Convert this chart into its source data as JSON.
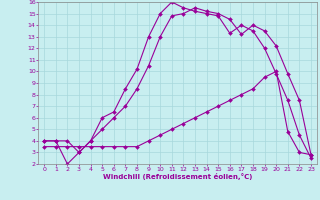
{
  "xlabel": "Windchill (Refroidissement éolien,°C)",
  "bg_color": "#c8eef0",
  "grid_color": "#a8d8dc",
  "line_color": "#990099",
  "xlim": [
    -0.5,
    23.5
  ],
  "ylim": [
    2,
    16
  ],
  "xticks": [
    0,
    1,
    2,
    3,
    4,
    5,
    6,
    7,
    8,
    9,
    10,
    11,
    12,
    13,
    14,
    15,
    16,
    17,
    18,
    19,
    20,
    21,
    22,
    23
  ],
  "yticks": [
    2,
    3,
    4,
    5,
    6,
    7,
    8,
    9,
    10,
    11,
    12,
    13,
    14,
    15,
    16
  ],
  "curve1_x": [
    0,
    1,
    2,
    3,
    4,
    5,
    6,
    7,
    8,
    9,
    10,
    11,
    12,
    13,
    14,
    15,
    16,
    17,
    18,
    19,
    20,
    21,
    22,
    23
  ],
  "curve1_y": [
    4,
    4,
    4,
    3,
    4,
    6,
    6.5,
    8.5,
    10.2,
    13,
    15,
    16,
    15.5,
    15.2,
    15.0,
    14.8,
    13.3,
    14.0,
    13.5,
    12.0,
    9.8,
    7.5,
    4.5,
    2.5
  ],
  "curve2_x": [
    0,
    1,
    2,
    3,
    4,
    5,
    6,
    7,
    8,
    9,
    10,
    11,
    12,
    13,
    14,
    15,
    16,
    17,
    18,
    19,
    20,
    21,
    22,
    23
  ],
  "curve2_y": [
    4,
    4,
    2.0,
    3.0,
    4.0,
    5.0,
    6.0,
    7.0,
    8.5,
    10.5,
    13.0,
    14.8,
    15.0,
    15.5,
    15.2,
    15.0,
    14.5,
    13.2,
    14.0,
    13.5,
    12.2,
    9.8,
    7.5,
    2.8
  ],
  "curve3_x": [
    0,
    1,
    2,
    3,
    4,
    5,
    6,
    7,
    8,
    9,
    10,
    11,
    12,
    13,
    14,
    15,
    16,
    17,
    18,
    19,
    20,
    21,
    22,
    23
  ],
  "curve3_y": [
    3.5,
    3.5,
    3.5,
    3.5,
    3.5,
    3.5,
    3.5,
    3.5,
    3.5,
    4.0,
    4.5,
    5.0,
    5.5,
    6.0,
    6.5,
    7.0,
    7.5,
    8.0,
    8.5,
    9.5,
    10.0,
    4.8,
    3.0,
    2.8
  ]
}
